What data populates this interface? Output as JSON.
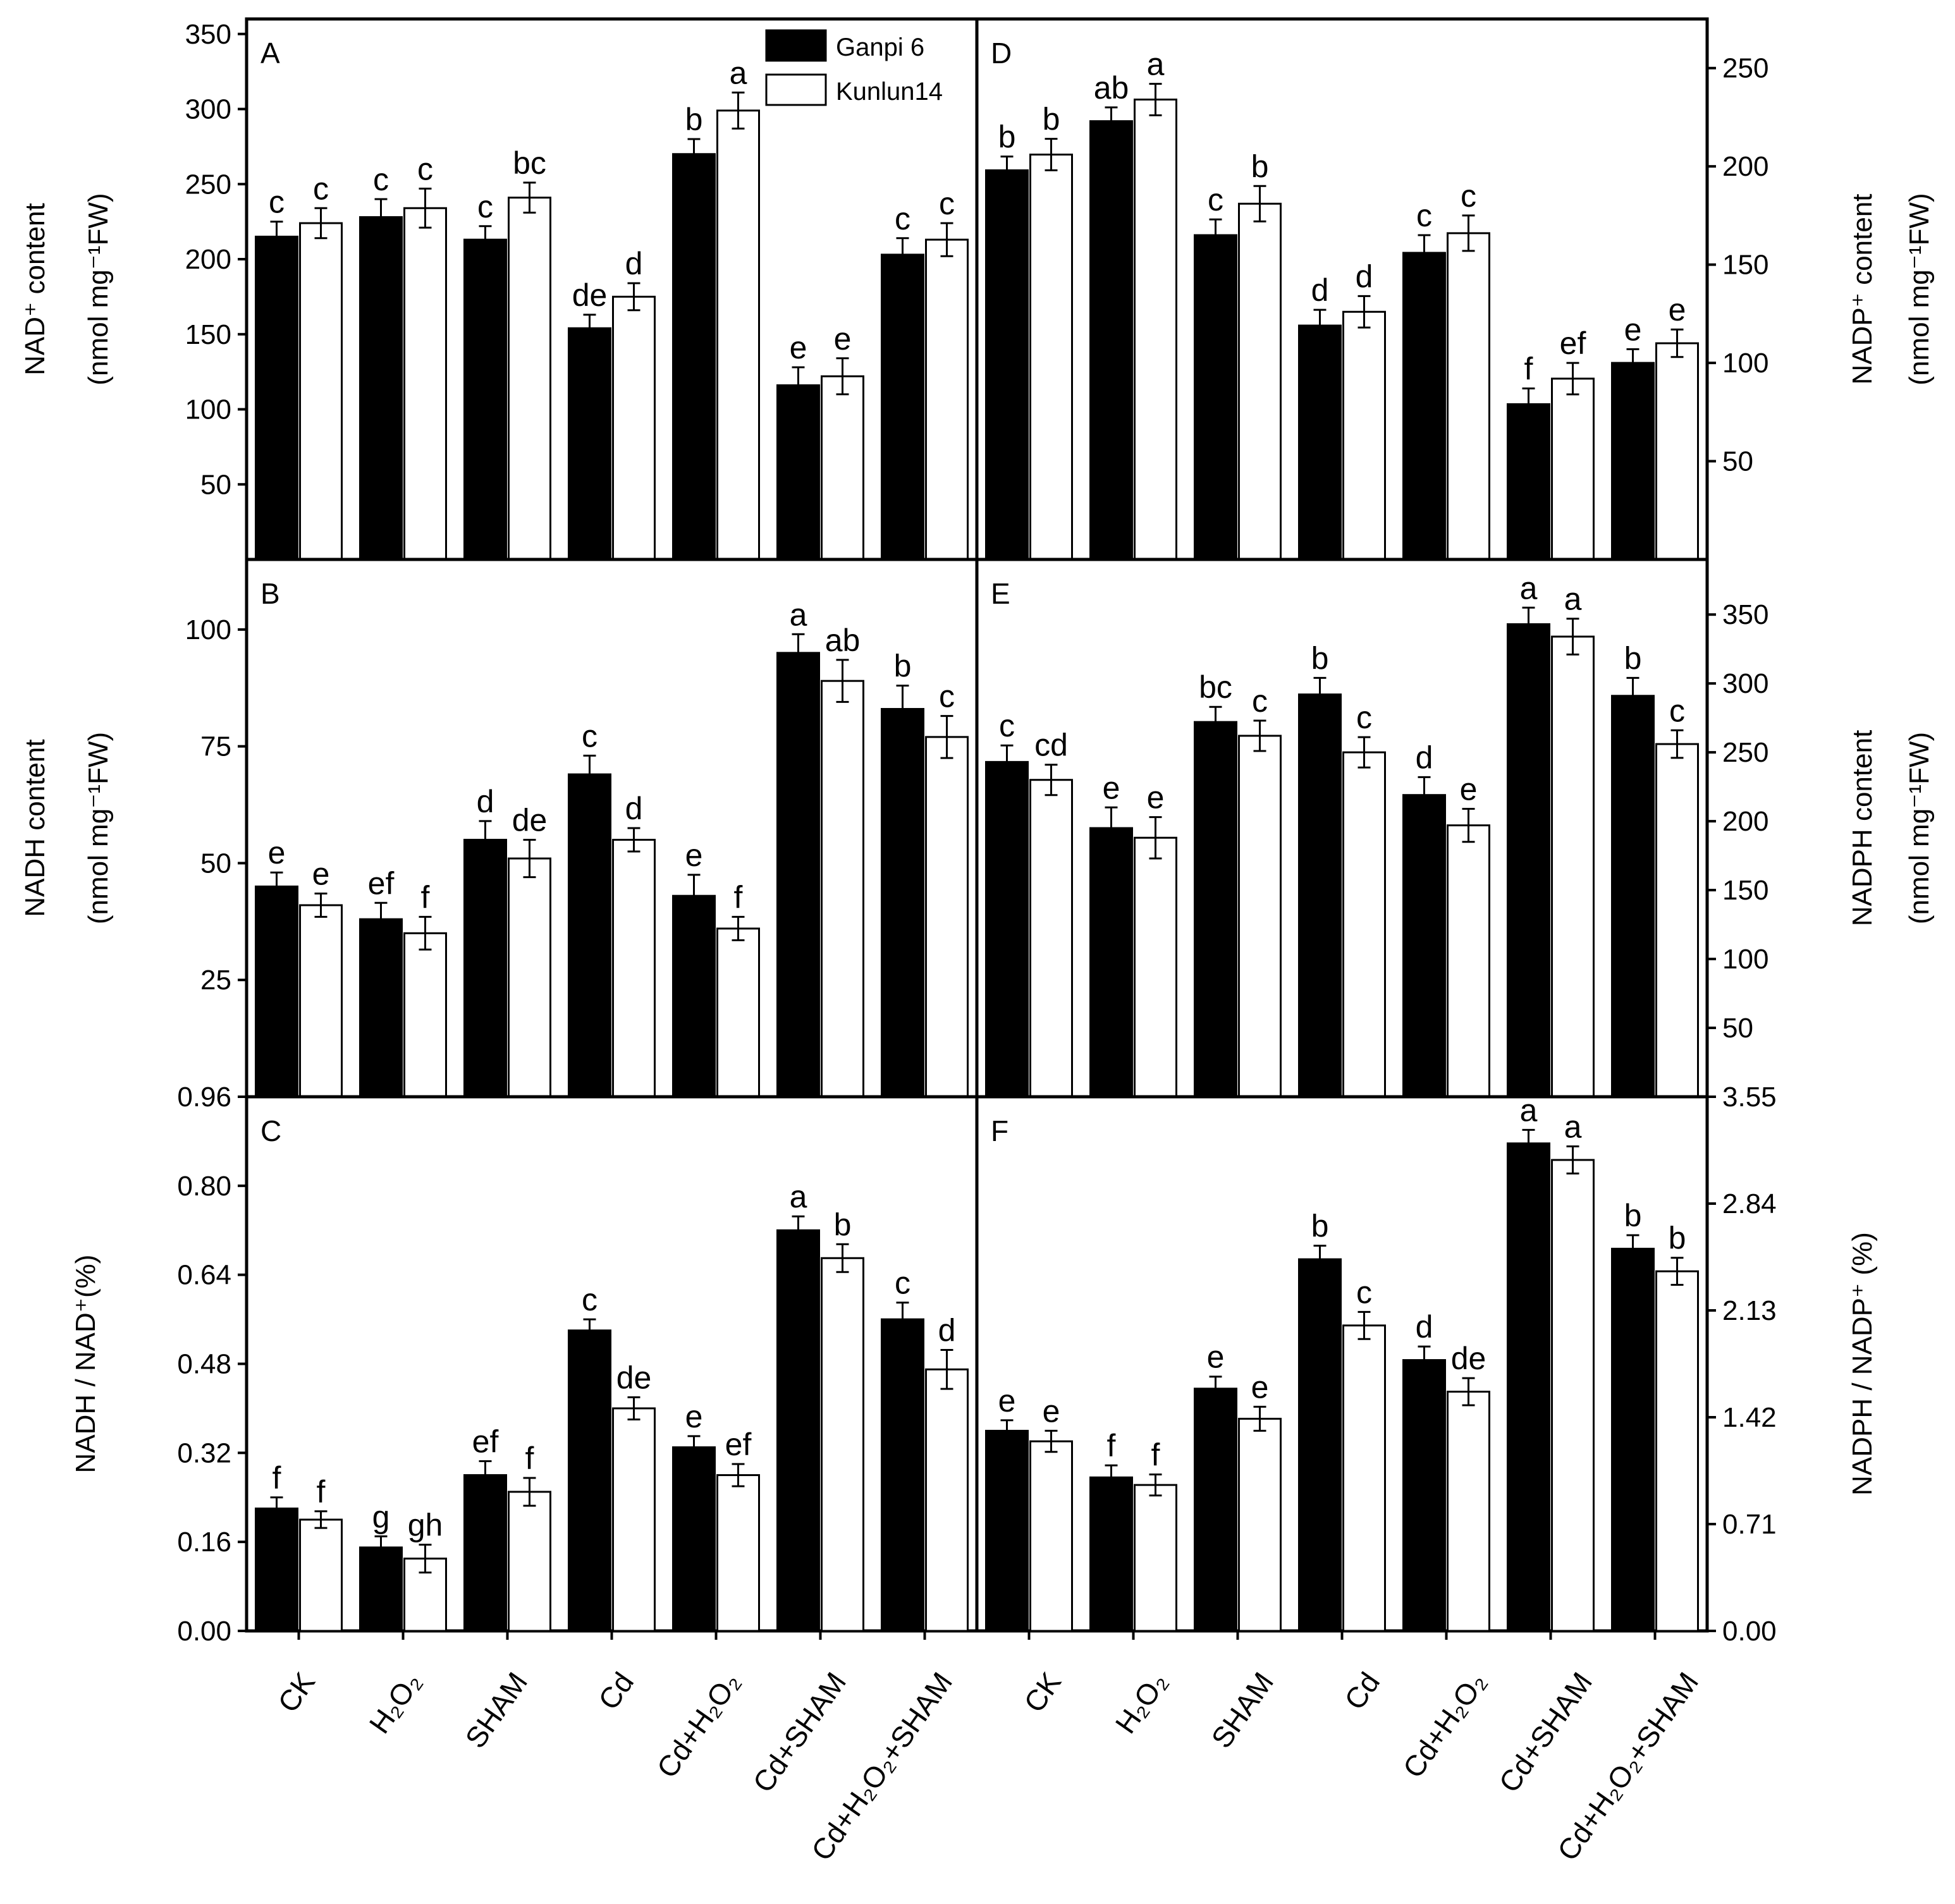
{
  "legend": {
    "series": [
      {
        "name": "Ganpi 6",
        "fill": "#000000"
      },
      {
        "name": "Kunlun14",
        "fill": "#ffffff"
      }
    ]
  },
  "categories_left": [
    "CK",
    "H₂O₂",
    "SHAM",
    "Cd",
    "Cd+H₂O₂",
    "Cd+SHAM",
    "Cd+H₂O₂+SHAM"
  ],
  "categories_right": [
    "CK",
    "H₂O₂",
    "SHAM",
    "Cd",
    "Cd+H₂O₂",
    "Cd+SHAM",
    "Cd+H₂O₂+SHAM"
  ],
  "chart_data": [
    {
      "panel": "A",
      "type": "bar",
      "ylabel": [
        "NAD⁺ content",
        "(nmol mg⁻¹FW)"
      ],
      "ylim": [
        0,
        360
      ],
      "yticks": [
        50,
        100,
        150,
        200,
        250,
        300,
        350
      ],
      "ytick_labels": [
        "50",
        "100",
        "150",
        "200",
        "250",
        "300",
        "350"
      ],
      "series": [
        {
          "name": "Ganpi 6",
          "values": [
            215,
            228,
            213,
            154,
            270,
            116,
            203
          ],
          "errors": [
            10,
            12,
            9,
            9,
            10,
            12,
            11
          ],
          "letters": [
            "c",
            "c",
            "c",
            "de",
            "b",
            "e",
            "c"
          ]
        },
        {
          "name": "Kunlun14",
          "values": [
            224,
            234,
            241,
            175,
            299,
            122,
            213
          ],
          "errors": [
            10,
            13,
            10,
            9,
            12,
            12,
            11
          ],
          "letters": [
            "c",
            "c",
            "bc",
            "d",
            "a",
            "e",
            "c"
          ]
        }
      ]
    },
    {
      "panel": "B",
      "type": "bar",
      "ylabel": [
        "NADH content",
        "(nmol mg⁻¹FW)"
      ],
      "ylim": [
        0,
        115
      ],
      "yticks": [
        25,
        50,
        75,
        100
      ],
      "ytick_labels": [
        "25",
        "50",
        "75",
        "100"
      ],
      "series": [
        {
          "name": "Ganpi 6",
          "values": [
            45,
            38,
            55,
            69,
            43,
            95,
            83
          ],
          "errors": [
            3,
            3.5,
            4,
            4,
            4.5,
            4,
            5
          ],
          "letters": [
            "e",
            "ef",
            "d",
            "c",
            "e",
            "a",
            "b"
          ]
        },
        {
          "name": "Kunlun14",
          "values": [
            41,
            35,
            51,
            55,
            36,
            89,
            77
          ],
          "errors": [
            2.5,
            3.5,
            4,
            2.5,
            2.5,
            4.5,
            4.5
          ],
          "letters": [
            "e",
            "f",
            "de",
            "d",
            "f",
            "ab",
            "c"
          ]
        }
      ]
    },
    {
      "panel": "C",
      "type": "bar",
      "ylabel": [
        "NADH / NAD⁺(%)"
      ],
      "ylim": [
        0,
        0.96
      ],
      "yticks": [
        0,
        0.16,
        0.32,
        0.48,
        0.64,
        0.8,
        0.96
      ],
      "ytick_labels": [
        "0.00",
        "0.16",
        "0.32",
        "0.48",
        "0.64",
        "0.80",
        "0.96"
      ],
      "series": [
        {
          "name": "Ganpi 6",
          "values": [
            0.22,
            0.15,
            0.28,
            0.54,
            0.33,
            0.72,
            0.56
          ],
          "errors": [
            0.02,
            0.02,
            0.025,
            0.02,
            0.02,
            0.025,
            0.03
          ],
          "letters": [
            "f",
            "g",
            "ef",
            "c",
            "e",
            "a",
            "c"
          ]
        },
        {
          "name": "Kunlun14",
          "values": [
            0.2,
            0.13,
            0.25,
            0.4,
            0.28,
            0.67,
            0.47
          ],
          "errors": [
            0.015,
            0.025,
            0.025,
            0.02,
            0.02,
            0.025,
            0.035
          ],
          "letters": [
            "f",
            "gh",
            "f",
            "de",
            "ef",
            "b",
            "d"
          ]
        }
      ]
    },
    {
      "panel": "D",
      "type": "bar",
      "ylabel": [
        "NADP⁺ content",
        "(nmol mg⁻¹FW)"
      ],
      "ylim": [
        0,
        275
      ],
      "yticks": [
        50,
        100,
        150,
        200,
        250
      ],
      "ytick_labels": [
        "50",
        "100",
        "150",
        "200",
        "250"
      ],
      "series": [
        {
          "name": "Ganpi 6",
          "values": [
            198,
            223,
            165,
            119,
            156,
            79,
            100
          ],
          "errors": [
            7,
            7,
            8,
            8,
            9,
            8,
            7
          ],
          "letters": [
            "b",
            "ab",
            "c",
            "d",
            "c",
            "f",
            "e"
          ]
        },
        {
          "name": "Kunlun14",
          "values": [
            206,
            234,
            181,
            126,
            166,
            92,
            110
          ],
          "errors": [
            8,
            8,
            9,
            8,
            9,
            8,
            7
          ],
          "letters": [
            "b",
            "a",
            "b",
            "d",
            "c",
            "ef",
            "e"
          ]
        }
      ]
    },
    {
      "panel": "E",
      "type": "bar",
      "ylabel": [
        "NADPH content",
        "(nmol mg⁻¹FW)"
      ],
      "ylim": [
        0,
        390
      ],
      "yticks": [
        50,
        100,
        150,
        200,
        250,
        300,
        350
      ],
      "ytick_labels": [
        "50",
        "100",
        "150",
        "200",
        "250",
        "300",
        "350"
      ],
      "series": [
        {
          "name": "Ganpi 6",
          "values": [
            243,
            195,
            272,
            292,
            219,
            343,
            291
          ],
          "errors": [
            12,
            15,
            11,
            12,
            13,
            12,
            13
          ],
          "letters": [
            "c",
            "e",
            "bc",
            "b",
            "d",
            "a",
            "b"
          ]
        },
        {
          "name": "Kunlun14",
          "values": [
            230,
            188,
            262,
            250,
            197,
            334,
            256
          ],
          "errors": [
            11,
            15,
            11,
            11,
            12,
            13,
            10
          ],
          "letters": [
            "cd",
            "e",
            "c",
            "c",
            "e",
            "a",
            "c"
          ]
        }
      ]
    },
    {
      "panel": "F",
      "type": "bar",
      "ylabel": [
        "NADPH / NADP⁺ (%)"
      ],
      "ylim": [
        0,
        3.55
      ],
      "yticks": [
        0,
        0.71,
        1.42,
        2.13,
        2.84,
        3.55
      ],
      "ytick_labels": [
        "0.00",
        "0.71",
        "1.42",
        "2.13",
        "2.84",
        "3.55"
      ],
      "series": [
        {
          "name": "Ganpi 6",
          "values": [
            1.33,
            1.02,
            1.61,
            2.47,
            1.8,
            3.24,
            2.54
          ],
          "errors": [
            0.07,
            0.08,
            0.08,
            0.09,
            0.09,
            0.09,
            0.09
          ],
          "letters": [
            "e",
            "f",
            "e",
            "b",
            "d",
            "a",
            "b"
          ]
        },
        {
          "name": "Kunlun14",
          "values": [
            1.26,
            0.97,
            1.41,
            2.03,
            1.59,
            3.13,
            2.39
          ],
          "errors": [
            0.07,
            0.07,
            0.08,
            0.09,
            0.09,
            0.09,
            0.09
          ],
          "letters": [
            "e",
            "f",
            "e",
            "c",
            "de",
            "a",
            "b"
          ]
        }
      ]
    }
  ]
}
